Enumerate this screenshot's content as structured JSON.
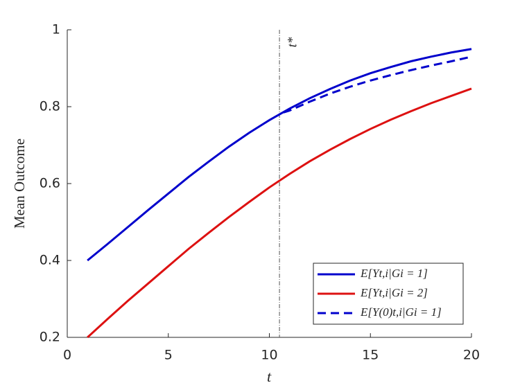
{
  "chart_data": {
    "type": "line",
    "xlabel": "t",
    "ylabel": "Mean Outcome",
    "xlim": [
      0,
      20
    ],
    "ylim": [
      0.2,
      1
    ],
    "xticks": [
      0,
      5,
      10,
      15,
      20
    ],
    "yticks": [
      0.2,
      0.4,
      0.6,
      0.8,
      1
    ],
    "legend": "lower right",
    "annotations": [
      {
        "text": "t*",
        "x": 10.5
      }
    ],
    "series": [
      {
        "name": "E[Yt,i|Gi = 1]",
        "color": "#0000cc",
        "dash": false,
        "x": [
          1,
          2,
          3,
          4,
          5,
          6,
          7,
          8,
          9,
          10,
          11,
          12,
          13,
          14,
          15,
          16,
          17,
          18,
          19,
          20
        ],
        "values": [
          0.4,
          0.443,
          0.487,
          0.531,
          0.574,
          0.617,
          0.657,
          0.696,
          0.732,
          0.765,
          0.795,
          0.822,
          0.846,
          0.868,
          0.887,
          0.903,
          0.918,
          0.93,
          0.941,
          0.95
        ]
      },
      {
        "name": "E[Yt,i|Gi = 2]",
        "color": "#dd1111",
        "dash": false,
        "x": [
          1,
          2,
          3,
          4,
          5,
          6,
          7,
          8,
          9,
          10,
          11,
          12,
          13,
          14,
          15,
          16,
          17,
          18,
          19,
          20
        ],
        "values": [
          0.2,
          0.248,
          0.295,
          0.34,
          0.385,
          0.43,
          0.472,
          0.513,
          0.552,
          0.59,
          0.625,
          0.658,
          0.688,
          0.716,
          0.742,
          0.766,
          0.788,
          0.809,
          0.828,
          0.847
        ]
      },
      {
        "name": "E[Y(0)t,i|Gi = 1]",
        "color": "#0000cc",
        "dash": true,
        "x": [
          10.7,
          11,
          12,
          13,
          14,
          15,
          16,
          17,
          18,
          19,
          20
        ],
        "values": [
          0.785,
          0.79,
          0.813,
          0.834,
          0.852,
          0.868,
          0.882,
          0.895,
          0.907,
          0.918,
          0.93
        ]
      }
    ]
  }
}
